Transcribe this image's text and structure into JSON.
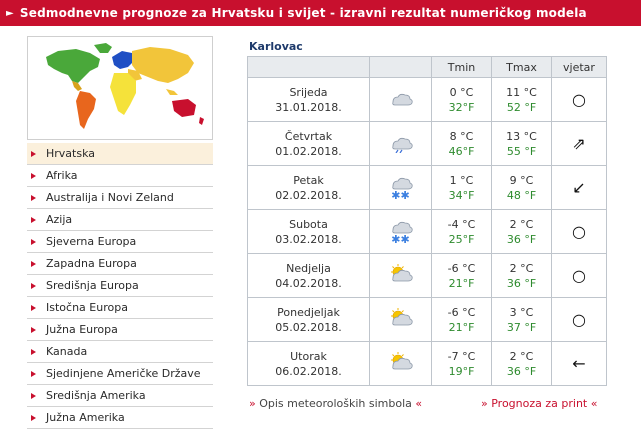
{
  "header": {
    "arrow": "►",
    "title": "Sedmodnevne prognoze za Hrvatsku i svijet - izravni rezultat numeričkog modela"
  },
  "colors": {
    "brand_red": "#c8102e",
    "fahrenheit_green": "#2e8b2e",
    "active_bg": "#fbf0dc"
  },
  "regions": [
    {
      "label": "Hrvatska",
      "active": true
    },
    {
      "label": "Afrika"
    },
    {
      "label": "Australija i Novi Zeland"
    },
    {
      "label": "Azija"
    },
    {
      "label": "Sjeverna Europa"
    },
    {
      "label": "Zapadna Europa"
    },
    {
      "label": "Središnja Europa"
    },
    {
      "label": "Istočna Europa"
    },
    {
      "label": "Južna Europa"
    },
    {
      "label": "Kanada"
    },
    {
      "label": "Sjedinjene Američke Države"
    },
    {
      "label": "Središnja Amerika"
    },
    {
      "label": "Južna Amerika"
    }
  ],
  "forecast": {
    "city": "Karlovac",
    "headers": {
      "day": "",
      "symbol": "",
      "tmin": "Tmin",
      "tmax": "Tmax",
      "wind": "vjetar"
    },
    "days": [
      {
        "name": "Srijeda",
        "date": "31.01.2018.",
        "symbol": "cloudy",
        "tmin_c": "0 °C",
        "tmin_f": "32°F",
        "tmax_c": "11 °C",
        "tmax_f": "52 °F",
        "wind": "○",
        "wind_icon": "calm-icon"
      },
      {
        "name": "Četvrtak",
        "date": "01.02.2018.",
        "symbol": "rain",
        "tmin_c": "8 °C",
        "tmin_f": "46°F",
        "tmax_c": "13 °C",
        "tmax_f": "55 °F",
        "wind": "⇗",
        "wind_icon": "wind-northeast-icon"
      },
      {
        "name": "Petak",
        "date": "02.02.2018.",
        "symbol": "snow",
        "tmin_c": "1 °C",
        "tmin_f": "34°F",
        "tmax_c": "9 °C",
        "tmax_f": "48 °F",
        "wind": "↙",
        "wind_icon": "wind-southwest-icon"
      },
      {
        "name": "Subota",
        "date": "03.02.2018.",
        "symbol": "snow",
        "tmin_c": "-4 °C",
        "tmin_f": "25°F",
        "tmax_c": "2 °C",
        "tmax_f": "36 °F",
        "wind": "○",
        "wind_icon": "calm-icon"
      },
      {
        "name": "Nedjelja",
        "date": "04.02.2018.",
        "symbol": "partly-sunny",
        "tmin_c": "-6 °C",
        "tmin_f": "21°F",
        "tmax_c": "2 °C",
        "tmax_f": "36 °F",
        "wind": "○",
        "wind_icon": "calm-icon"
      },
      {
        "name": "Ponedjeljak",
        "date": "05.02.2018.",
        "symbol": "partly-sunny",
        "tmin_c": "-6 °C",
        "tmin_f": "21°F",
        "tmax_c": "3 °C",
        "tmax_f": "37 °F",
        "wind": "○",
        "wind_icon": "calm-icon"
      },
      {
        "name": "Utorak",
        "date": "06.02.2018.",
        "symbol": "partly-sunny",
        "tmin_c": "-7 °C",
        "tmin_f": "19°F",
        "tmax_c": "2 °C",
        "tmax_f": "36 °F",
        "wind": "←",
        "wind_icon": "wind-west-icon"
      }
    ]
  },
  "footer": {
    "left_pre": "» ",
    "left_label": "Opis meteoroloških simbola",
    "left_post": " «",
    "right_pre": "» ",
    "right_label": "Prognoza za print",
    "right_post": " «"
  }
}
